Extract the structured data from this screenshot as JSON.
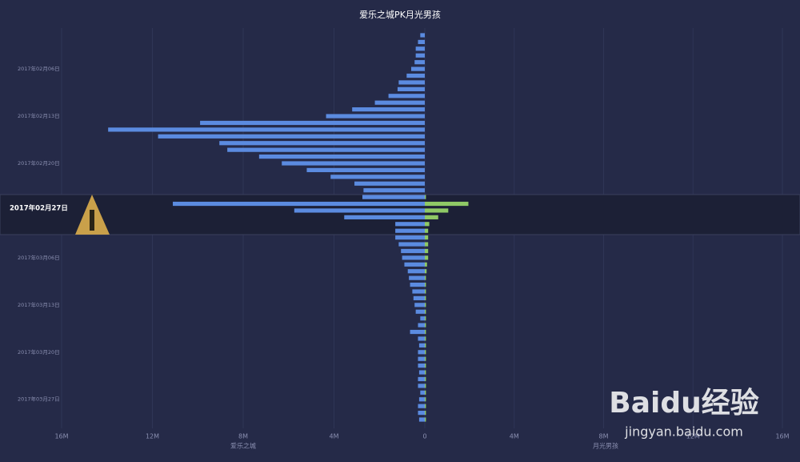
{
  "chart_data": {
    "type": "butterfly-bar",
    "title": "爱乐之城PK月光男孩",
    "categories": [
      null,
      null,
      null,
      null,
      null,
      "2017年02月06日",
      null,
      null,
      null,
      null,
      null,
      null,
      "2017年02月13日",
      null,
      null,
      null,
      null,
      null,
      null,
      "2017年02月20日",
      null,
      null,
      null,
      null,
      null,
      null,
      "2017年02月27日",
      null,
      null,
      null,
      null,
      null,
      null,
      "2017年03月06日",
      null,
      null,
      null,
      null,
      null,
      null,
      "2017年03月13日",
      null,
      null,
      null,
      null,
      null,
      null,
      "2017年03月20日",
      null,
      null,
      null,
      null,
      null,
      null,
      "2017年03月27日",
      null,
      null,
      null
    ],
    "highlight_index": 26,
    "series": [
      {
        "name": "爱乐之城",
        "color": "#5b8be0",
        "side": "left",
        "values": [
          0.2,
          0.3,
          0.4,
          0.4,
          0.45,
          0.6,
          0.8,
          1.15,
          1.2,
          1.6,
          2.2,
          3.2,
          4.35,
          9.9,
          13.95,
          11.75,
          9.05,
          8.7,
          7.3,
          6.3,
          5.2,
          4.15,
          3.1,
          2.7,
          2.75,
          11.1,
          5.75,
          3.55,
          1.3,
          1.3,
          1.3,
          1.15,
          1.05,
          1.0,
          0.9,
          0.75,
          0.7,
          0.65,
          0.55,
          0.5,
          0.45,
          0.4,
          0.2,
          0.3,
          0.65,
          0.3,
          0.25,
          0.3,
          0.3,
          0.3,
          0.25,
          0.3,
          0.3,
          0.2,
          0.25,
          0.3,
          0.3,
          0.25
        ]
      },
      {
        "name": "月光男孩",
        "color": "#8fc966",
        "side": "right",
        "values": [
          0,
          0,
          0,
          0,
          0,
          0,
          0,
          0,
          0,
          0,
          0,
          0,
          0,
          0,
          0,
          0,
          0,
          0,
          0,
          0,
          0,
          0,
          0,
          0,
          0.05,
          1.95,
          1.05,
          0.6,
          0.2,
          0.15,
          0.15,
          0.15,
          0.15,
          0.15,
          0.1,
          0.08,
          0.05,
          0.05,
          0.05,
          0.05,
          0.05,
          0.05,
          0.05,
          0.05,
          0.05,
          0.05,
          0.05,
          0.05,
          0.05,
          0.05,
          0.05,
          0.05,
          0.05,
          0.05,
          0.05,
          0.05,
          0.05,
          0.05
        ]
      }
    ],
    "xlim_left": [
      16,
      0
    ],
    "xticks_left": [
      {
        "value": 16,
        "label": "16M"
      },
      {
        "value": 12,
        "label": "12M"
      },
      {
        "value": 8,
        "label": "8M"
      },
      {
        "value": 4,
        "label": "4M"
      },
      0
    ],
    "xlim_right": [
      0,
      16
    ],
    "xticks_right": [
      {
        "value": 4,
        "label": "4M"
      },
      {
        "value": 8,
        "label": "8M"
      },
      {
        "value": 12,
        "label": "12M"
      },
      {
        "value": 16,
        "label": "16M"
      }
    ],
    "grid": true
  },
  "watermark": {
    "brand": "Baidu经验",
    "url": "jingyan.baidu.com"
  }
}
